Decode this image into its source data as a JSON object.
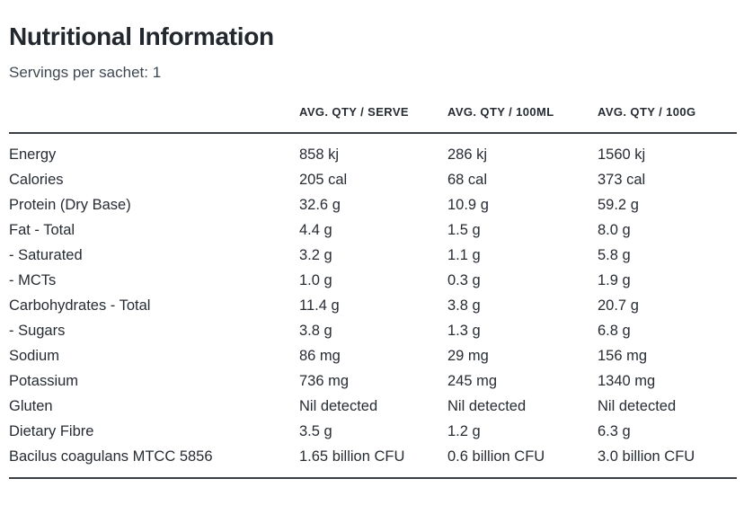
{
  "page": {
    "title": "Nutritional Information",
    "subtitle": "Servings per sachet: 1"
  },
  "colors": {
    "text": "#272c33",
    "title": "#23282f",
    "subtitle": "#3e4751",
    "rule_line": "#3c4046",
    "background": "#ffffff"
  },
  "table": {
    "columns": {
      "label": "",
      "serve": "AVG. QTY / SERVE",
      "per100ml": "AVG. QTY / 100ML",
      "per100g": "AVG. QTY / 100G"
    },
    "rows": [
      {
        "label": "Energy",
        "serve": "858 kj",
        "per100ml": "286 kj",
        "per100g": "1560 kj"
      },
      {
        "label": "Calories",
        "serve": "205 cal",
        "per100ml": "68 cal",
        "per100g": "373 cal"
      },
      {
        "label": "Protein (Dry Base)",
        "serve": "32.6 g",
        "per100ml": "10.9 g",
        "per100g": "59.2 g"
      },
      {
        "label": "Fat - Total",
        "serve": "4.4 g",
        "per100ml": "1.5 g",
        "per100g": "8.0 g"
      },
      {
        "label": "- Saturated",
        "serve": "3.2 g",
        "per100ml": "1.1 g",
        "per100g": "5.8 g"
      },
      {
        "label": "- MCTs",
        "serve": "1.0 g",
        "per100ml": "0.3 g",
        "per100g": "1.9 g"
      },
      {
        "label": "Carbohydrates - Total",
        "serve": "11.4 g",
        "per100ml": "3.8 g",
        "per100g": "20.7 g"
      },
      {
        "label": "- Sugars",
        "serve": "3.8 g",
        "per100ml": "1.3 g",
        "per100g": "6.8 g"
      },
      {
        "label": "Sodium",
        "serve": "86 mg",
        "per100ml": "29 mg",
        "per100g": "156 mg"
      },
      {
        "label": "Potassium",
        "serve": "736 mg",
        "per100ml": "245 mg",
        "per100g": "1340 mg"
      },
      {
        "label": "Gluten",
        "serve": "Nil detected",
        "per100ml": "Nil detected",
        "per100g": "Nil detected"
      },
      {
        "label": "Dietary Fibre",
        "serve": "3.5 g",
        "per100ml": "1.2 g",
        "per100g": "6.3 g"
      },
      {
        "label": "Bacilus coagulans MTCC 5856",
        "serve": "1.65 billion CFU",
        "per100ml": "0.6 billion CFU",
        "per100g": "3.0 billion CFU"
      }
    ]
  }
}
